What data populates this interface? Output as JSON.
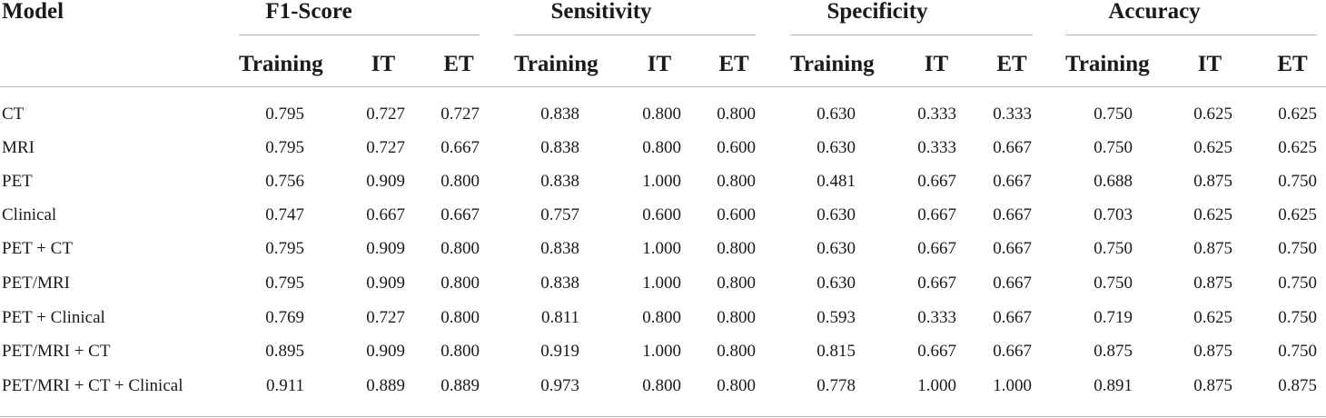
{
  "table": {
    "model_header": "Model",
    "groups": [
      "F1-Score",
      "Sensitivity",
      "Specificity",
      "Accuracy"
    ],
    "subheaders": [
      "Training",
      "IT",
      "ET"
    ],
    "rows": [
      {
        "model": "CT",
        "values": [
          "0.795",
          "0.727",
          "0.727",
          "0.838",
          "0.800",
          "0.800",
          "0.630",
          "0.333",
          "0.333",
          "0.750",
          "0.625",
          "0.625"
        ]
      },
      {
        "model": "MRI",
        "values": [
          "0.795",
          "0.727",
          "0.667",
          "0.838",
          "0.800",
          "0.600",
          "0.630",
          "0.333",
          "0.667",
          "0.750",
          "0.625",
          "0.625"
        ]
      },
      {
        "model": "PET",
        "values": [
          "0.756",
          "0.909",
          "0.800",
          "0.838",
          "1.000",
          "0.800",
          "0.481",
          "0.667",
          "0.667",
          "0.688",
          "0.875",
          "0.750"
        ]
      },
      {
        "model": "Clinical",
        "values": [
          "0.747",
          "0.667",
          "0.667",
          "0.757",
          "0.600",
          "0.600",
          "0.630",
          "0.667",
          "0.667",
          "0.703",
          "0.625",
          "0.625"
        ]
      },
      {
        "model": "PET + CT",
        "values": [
          "0.795",
          "0.909",
          "0.800",
          "0.838",
          "1.000",
          "0.800",
          "0.630",
          "0.667",
          "0.667",
          "0.750",
          "0.875",
          "0.750"
        ]
      },
      {
        "model": "PET/MRI",
        "values": [
          "0.795",
          "0.909",
          "0.800",
          "0.838",
          "1.000",
          "0.800",
          "0.630",
          "0.667",
          "0.667",
          "0.750",
          "0.875",
          "0.750"
        ]
      },
      {
        "model": "PET + Clinical",
        "values": [
          "0.769",
          "0.727",
          "0.800",
          "0.811",
          "0.800",
          "0.800",
          "0.593",
          "0.333",
          "0.667",
          "0.719",
          "0.625",
          "0.750"
        ]
      },
      {
        "model": "PET/MRI + CT",
        "values": [
          "0.895",
          "0.909",
          "0.800",
          "0.919",
          "1.000",
          "0.800",
          "0.815",
          "0.667",
          "0.667",
          "0.875",
          "0.875",
          "0.750"
        ]
      },
      {
        "model": "PET/MRI + CT + Clinical",
        "values": [
          "0.911",
          "0.889",
          "0.889",
          "0.973",
          "0.800",
          "0.800",
          "0.778",
          "1.000",
          "1.000",
          "0.891",
          "0.875",
          "0.875"
        ]
      }
    ]
  }
}
